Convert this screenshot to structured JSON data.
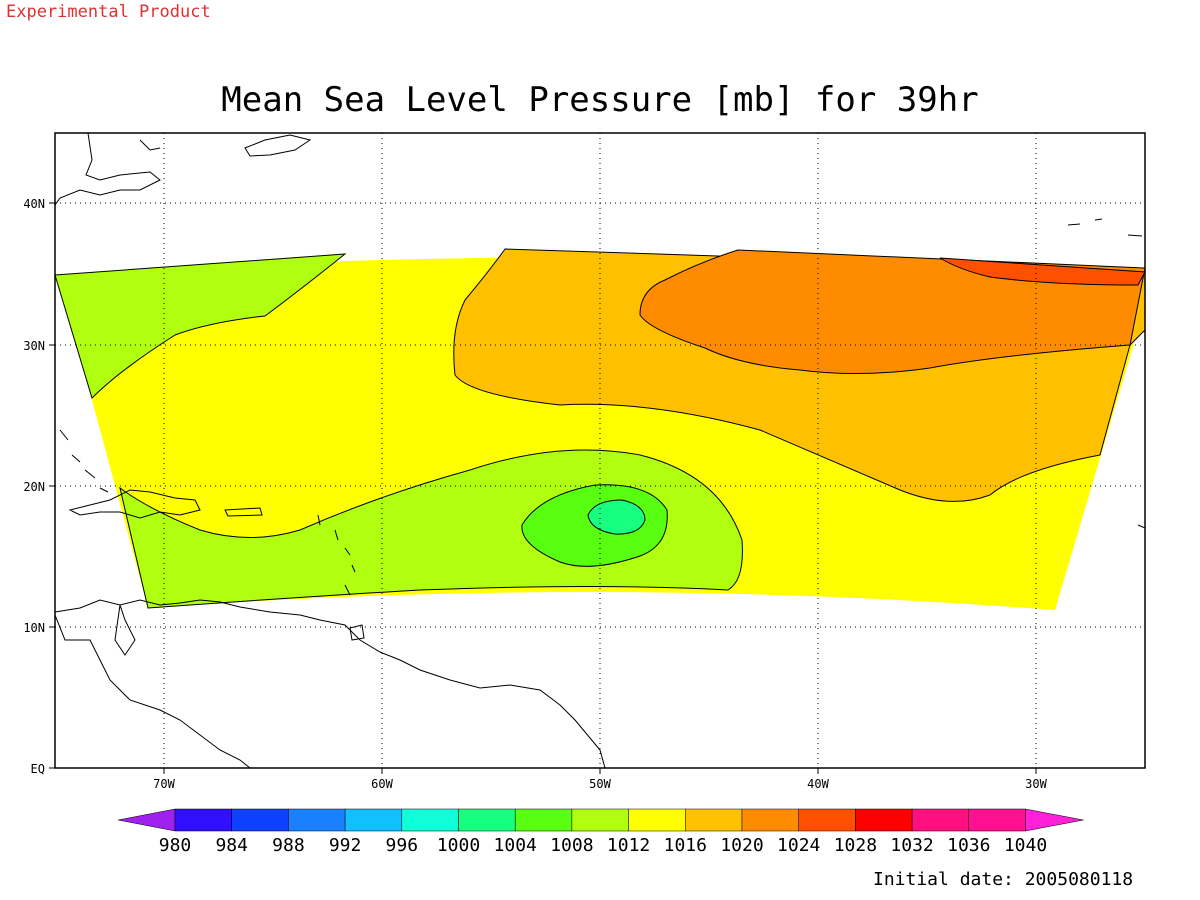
{
  "header": {
    "product_note": "Experimental Product",
    "title": "Mean Sea Level Pressure [mb] for 39hr"
  },
  "footer": {
    "initial_date": "Initial date: 2005080118"
  },
  "map": {
    "lon_range": [
      -75,
      -25
    ],
    "lat_range": [
      0,
      45
    ],
    "lon_ticks": [
      "70W",
      "60W",
      "50W",
      "40W",
      "30W"
    ],
    "lat_ticks": [
      "40N",
      "30N",
      "20N",
      "10N",
      "EQ"
    ],
    "grid": "dotted",
    "contour_interval_mb": 4,
    "features": [
      {
        "name": "high-pressure-ridge",
        "max_mb": 1028,
        "location": "NE, near 35N 35W"
      },
      {
        "name": "low-pressure-center",
        "min_mb": 1000,
        "location": "near 18N 49W"
      }
    ]
  },
  "colorbar": {
    "labels": [
      "980",
      "984",
      "988",
      "992",
      "996",
      "1000",
      "1004",
      "1008",
      "1012",
      "1016",
      "1020",
      "1024",
      "1028",
      "1032",
      "1036",
      "1040"
    ],
    "colors": [
      "#a020f0",
      "#3010ff",
      "#1040ff",
      "#1a80ff",
      "#12c0ff",
      "#10ffd8",
      "#18ff80",
      "#58ff10",
      "#b0ff10",
      "#ffff00",
      "#ffc000",
      "#ff8c00",
      "#ff5000",
      "#ff0000",
      "#ff1080",
      "#ff1090",
      "#ff20d8"
    ]
  }
}
